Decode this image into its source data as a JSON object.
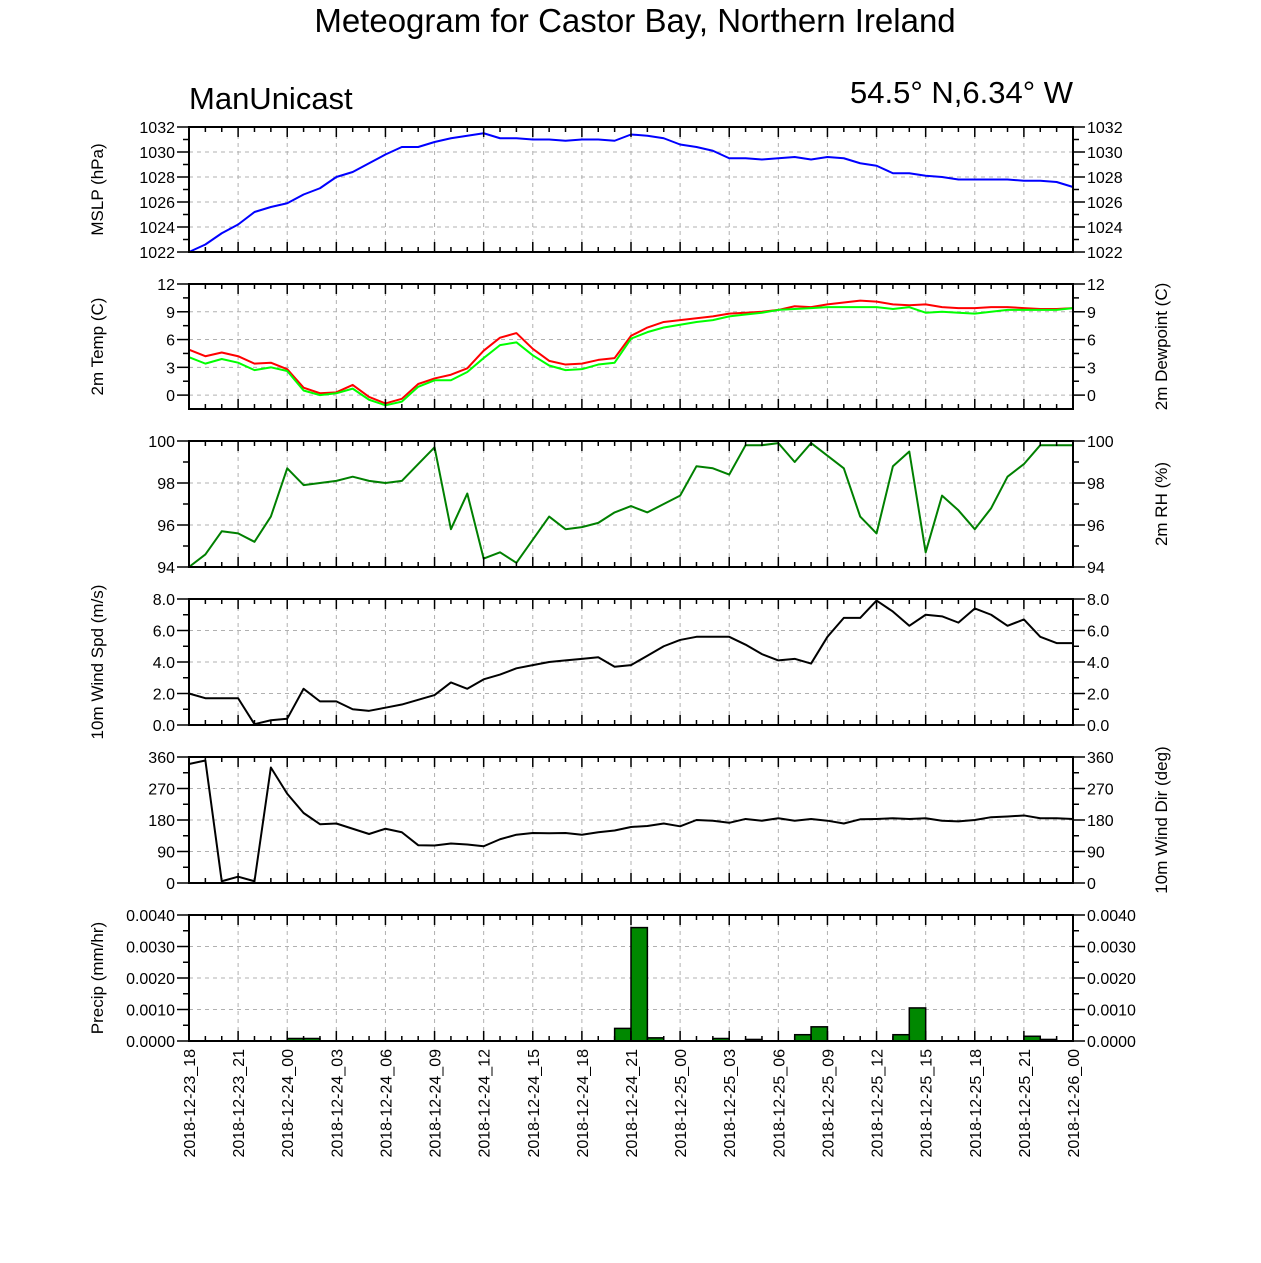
{
  "title": "Meteogram for Castor Bay, Northern Ireland",
  "header_left": "ManUnicast",
  "header_right": "54.5° N,6.34° W",
  "x_tick_labels": [
    "2018-12-23_18",
    "2018-12-23_21",
    "2018-12-24_00",
    "2018-12-24_03",
    "2018-12-24_06",
    "2018-12-24_09",
    "2018-12-24_12",
    "2018-12-24_15",
    "2018-12-24_18",
    "2018-12-24_21",
    "2018-12-25_00",
    "2018-12-25_03",
    "2018-12-25_06",
    "2018-12-25_09",
    "2018-12-25_12",
    "2018-12-25_15",
    "2018-12-25_18",
    "2018-12-25_21",
    "2018-12-26_00"
  ],
  "colors": {
    "mslp": "#0000ff",
    "temp": "#ff0000",
    "dewpoint": "#00ff00",
    "rh": "#008000",
    "wind": "#000000",
    "precip_fill": "#008800",
    "grid": "#b0b0b0"
  },
  "chart_data": [
    {
      "id": "mslp",
      "type": "line",
      "ylabel_left": "MSLP (hPa)",
      "ylabel_right": "",
      "ylim": [
        1022,
        1032
      ],
      "yticks": [
        1022,
        1024,
        1026,
        1028,
        1030,
        1032
      ],
      "ytick_labels": [
        "1022",
        "1024",
        "1026",
        "1028",
        "1030",
        "1032"
      ],
      "grid": true,
      "x_start": "2018-12-23_18",
      "x_step_hours": 1,
      "series": [
        {
          "color": "#0000ff",
          "values": [
            1022.0,
            1022.6,
            1023.5,
            1024.2,
            1025.2,
            1025.6,
            1025.9,
            1026.6,
            1027.1,
            1028.0,
            1028.4,
            1029.1,
            1029.8,
            1030.4,
            1030.4,
            1030.8,
            1031.1,
            1031.3,
            1031.5,
            1031.1,
            1031.1,
            1031.0,
            1031.0,
            1030.9,
            1031.0,
            1031.0,
            1030.9,
            1031.4,
            1031.3,
            1031.1,
            1030.6,
            1030.4,
            1030.1,
            1029.5,
            1029.5,
            1029.4,
            1029.5,
            1029.6,
            1029.4,
            1029.6,
            1029.5,
            1029.1,
            1028.9,
            1028.3,
            1028.3,
            1028.1,
            1028.0,
            1027.8,
            1027.8,
            1027.8,
            1027.8,
            1027.7,
            1027.7,
            1027.6,
            1027.2
          ]
        }
      ]
    },
    {
      "id": "temp",
      "type": "line",
      "ylabel_left": "2m Temp (C)",
      "ylabel_right": "2m Dewpoint (C)",
      "ylim": [
        -1.5,
        12
      ],
      "yticks": [
        0,
        3,
        6,
        9,
        12
      ],
      "ytick_labels": [
        "0",
        "3",
        "6",
        "9",
        "12"
      ],
      "grid": true,
      "x_start": "2018-12-23_18",
      "x_step_hours": 1,
      "series": [
        {
          "color": "#ff0000",
          "values": [
            4.9,
            4.2,
            4.6,
            4.2,
            3.4,
            3.5,
            2.8,
            0.8,
            0.2,
            0.3,
            1.1,
            -0.2,
            -0.9,
            -0.4,
            1.2,
            1.8,
            2.2,
            2.9,
            4.8,
            6.2,
            6.7,
            5.0,
            3.7,
            3.3,
            3.4,
            3.8,
            4.0,
            6.4,
            7.3,
            7.9,
            8.1,
            8.3,
            8.5,
            8.8,
            8.9,
            9.0,
            9.2,
            9.6,
            9.5,
            9.8,
            10.0,
            10.2,
            10.1,
            9.8,
            9.7,
            9.8,
            9.5,
            9.4,
            9.4,
            9.5,
            9.5,
            9.4,
            9.3,
            9.3,
            9.4
          ]
        },
        {
          "color": "#00ff00",
          "values": [
            4.1,
            3.4,
            3.9,
            3.5,
            2.7,
            3.0,
            2.6,
            0.5,
            0.0,
            0.2,
            0.7,
            -0.5,
            -1.1,
            -0.7,
            0.9,
            1.6,
            1.6,
            2.5,
            4.0,
            5.4,
            5.7,
            4.3,
            3.2,
            2.7,
            2.8,
            3.3,
            3.5,
            6.1,
            6.8,
            7.3,
            7.6,
            7.9,
            8.1,
            8.5,
            8.7,
            8.9,
            9.2,
            9.3,
            9.4,
            9.5,
            9.5,
            9.5,
            9.5,
            9.3,
            9.5,
            8.9,
            9.0,
            8.9,
            8.8,
            9.0,
            9.2,
            9.2,
            9.2,
            9.2,
            9.4
          ]
        }
      ]
    },
    {
      "id": "rh",
      "type": "line",
      "ylabel_left": "",
      "ylabel_right": "2m RH (%)",
      "ylim": [
        94,
        100
      ],
      "yticks": [
        94,
        96,
        98,
        100
      ],
      "ytick_labels": [
        "94",
        "96",
        "98",
        "100"
      ],
      "grid": true,
      "x_start": "2018-12-23_18",
      "x_step_hours": 1,
      "series": [
        {
          "color": "#008000",
          "values": [
            94.0,
            94.6,
            95.7,
            95.6,
            95.2,
            96.4,
            98.7,
            97.9,
            98.0,
            98.1,
            98.3,
            98.1,
            98.0,
            98.1,
            98.9,
            99.7,
            95.8,
            97.5,
            94.4,
            94.7,
            94.2,
            95.3,
            96.4,
            95.8,
            95.9,
            96.1,
            96.6,
            96.9,
            96.6,
            97.0,
            97.4,
            98.8,
            98.7,
            98.4,
            99.8,
            99.8,
            99.9,
            99.0,
            99.9,
            99.3,
            98.7,
            96.4,
            95.6,
            98.8,
            99.5,
            94.7,
            97.4,
            96.7,
            95.8,
            96.8,
            98.3,
            98.9,
            99.8,
            99.8,
            99.8
          ]
        }
      ]
    },
    {
      "id": "wind_speed",
      "type": "line",
      "ylabel_left": "10m Wind Spd (m/s)",
      "ylabel_right": "",
      "ylim": [
        0,
        8
      ],
      "yticks": [
        0,
        2,
        4,
        6,
        8
      ],
      "ytick_labels": [
        "0.0",
        "2.0",
        "4.0",
        "6.0",
        "8.0"
      ],
      "grid": true,
      "x_start": "2018-12-23_18",
      "x_step_hours": 1,
      "series": [
        {
          "color": "#000000",
          "values": [
            2.0,
            1.7,
            1.7,
            1.7,
            0.05,
            0.3,
            0.4,
            2.3,
            1.5,
            1.5,
            1.0,
            0.9,
            1.1,
            1.3,
            1.6,
            1.9,
            2.7,
            2.3,
            2.9,
            3.2,
            3.6,
            3.8,
            4.0,
            4.1,
            4.2,
            4.3,
            3.7,
            3.8,
            4.4,
            5.0,
            5.4,
            5.6,
            5.6,
            5.6,
            5.1,
            4.5,
            4.1,
            4.2,
            3.9,
            5.6,
            6.8,
            6.8,
            7.9,
            7.2,
            6.3,
            7.0,
            6.9,
            6.5,
            7.4,
            7.0,
            6.3,
            6.7,
            5.6,
            5.2,
            5.2
          ]
        }
      ]
    },
    {
      "id": "wind_dir",
      "type": "line",
      "ylabel_left": "",
      "ylabel_right": "10m Wind Dir (deg)",
      "ylim": [
        0,
        360
      ],
      "yticks": [
        0,
        90,
        180,
        270,
        360
      ],
      "ytick_labels": [
        "0",
        "90",
        "180",
        "270",
        "360"
      ],
      "grid": true,
      "x_start": "2018-12-23_18",
      "x_step_hours": 1,
      "series": [
        {
          "color": "#000000",
          "values": [
            340,
            350,
            5,
            18,
            5,
            330,
            255,
            200,
            168,
            170,
            155,
            140,
            155,
            145,
            108,
            107,
            113,
            110,
            105,
            125,
            138,
            143,
            142,
            143,
            138,
            145,
            150,
            160,
            163,
            170,
            162,
            180,
            178,
            172,
            183,
            178,
            185,
            178,
            183,
            178,
            170,
            182,
            183,
            185,
            183,
            185,
            178,
            176,
            180,
            188,
            190,
            193,
            185,
            185,
            183
          ]
        }
      ]
    },
    {
      "id": "precip",
      "type": "bar",
      "ylabel_left": "Precip (mm/hr)",
      "ylabel_right": "",
      "ylim": [
        0,
        0.004
      ],
      "yticks": [
        0,
        0.001,
        0.002,
        0.003,
        0.004
      ],
      "ytick_labels": [
        "0.0000",
        "0.0010",
        "0.0020",
        "0.0030",
        "0.0040"
      ],
      "grid": true,
      "x_start": "2018-12-23_18",
      "x_step_hours": 1,
      "series": [
        {
          "color": "#008800",
          "values": [
            0,
            0,
            0,
            0,
            0,
            0,
            8e-05,
            8e-05,
            0,
            0,
            0,
            0,
            0,
            0,
            0,
            0,
            0,
            0,
            0,
            0,
            0,
            0,
            0,
            0,
            0,
            0,
            0.0004,
            0.0036,
            0.0001,
            0,
            0,
            0,
            8e-05,
            0,
            5e-05,
            0,
            0,
            0.0002,
            0.00045,
            0,
            0,
            0,
            0,
            0.0002,
            0.00105,
            0,
            0,
            0,
            0,
            0,
            0,
            0.00015,
            5e-05,
            0
          ]
        }
      ]
    }
  ]
}
